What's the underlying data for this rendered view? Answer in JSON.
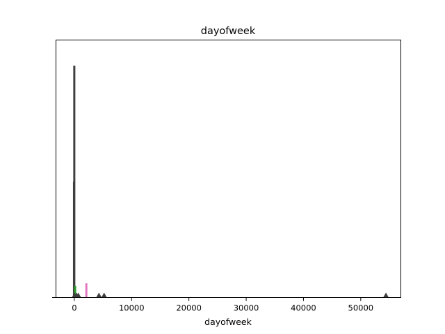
{
  "chart_data": {
    "type": "bar",
    "title": "dayofweek",
    "xlabel": "dayofweek",
    "ylabel": "",
    "xlim": [
      -3200,
      57000
    ],
    "ylim": [
      0,
      1
    ],
    "grid": false,
    "x_ticks": [
      0,
      10000,
      20000,
      30000,
      40000,
      50000
    ],
    "x_tick_labels": [
      "0",
      "10000",
      "20000",
      "30000",
      "40000",
      "50000"
    ],
    "series": [
      {
        "color": "#3f3f3f",
        "bars": [
          {
            "x": 0,
            "height": 0.9
          }
        ]
      },
      {
        "color": "#3f3f3f",
        "bars": [
          {
            "x": -50,
            "height": 0.45
          }
        ]
      },
      {
        "color": "#2ca02c",
        "bars": [
          {
            "x": 150,
            "height": 0.045
          }
        ]
      },
      {
        "color": "#e377c2",
        "bars": [
          {
            "x": 2100,
            "height": 0.055
          }
        ]
      }
    ],
    "outlier_markers": {
      "color": "#3f3f3f",
      "x": [
        50,
        400,
        700,
        4300,
        5200,
        54400
      ]
    }
  }
}
